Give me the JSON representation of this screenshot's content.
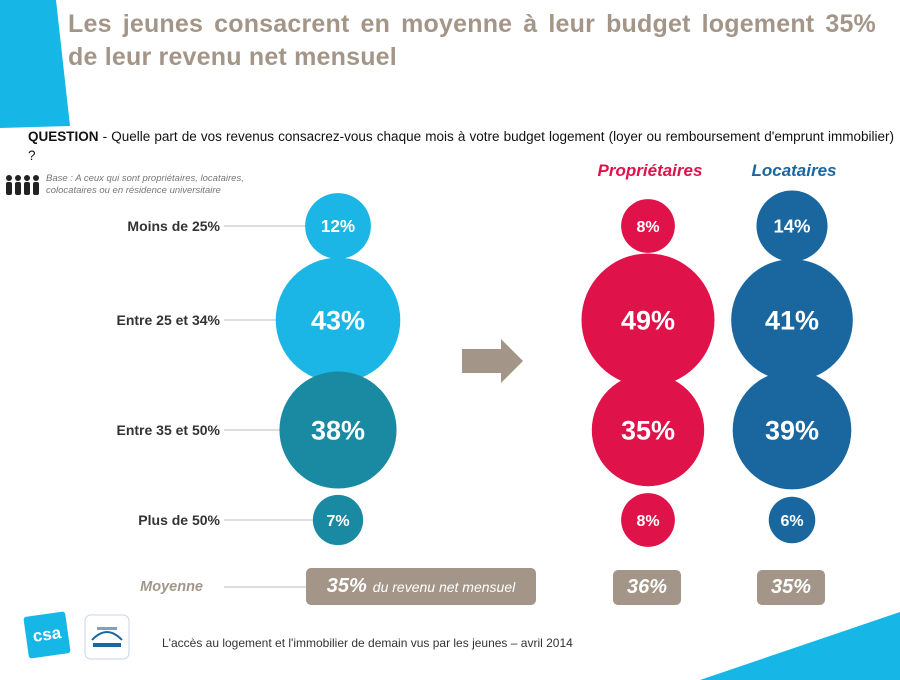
{
  "title": "Les jeunes consacrent en moyenne à leur budget logement 35% de leur revenu net mensuel",
  "question": {
    "prefix": "QUESTION",
    "text": " - Quelle part de vos revenus consacrez-vous chaque mois à votre budget logement (loyer ou remboursement d'emprunt immobilier) ?"
  },
  "base_note": "Base : A ceux qui sont propriétaires, locataires, colocataires ou en résidence universitaire",
  "colors": {
    "ensemble": [
      "#1cb6e6",
      "#1cb6e6",
      "#1a8aa3",
      "#1a8aa3"
    ],
    "proprietaires": "#e0124a",
    "locataires": "#1a67a0",
    "moyenne": "#a39688",
    "arrow": "#a39688"
  },
  "chart_data": {
    "type": "bubble",
    "categories": [
      "Moins de 25%",
      "Entre 25 et 34%",
      "Entre 35 et 50%",
      "Plus de 50%"
    ],
    "series": [
      {
        "key": "ensemble",
        "values": [
          12,
          43,
          38,
          7
        ],
        "labels": [
          "12%",
          "43%",
          "38%",
          "7%"
        ]
      },
      {
        "key": "proprietaires",
        "name": "Propriétaires",
        "values": [
          8,
          49,
          35,
          8
        ],
        "labels": [
          "8%",
          "49%",
          "35%",
          "8%"
        ]
      },
      {
        "key": "locataires",
        "name": "Locataires",
        "values": [
          14,
          41,
          39,
          6
        ],
        "labels": [
          "14%",
          "41%",
          "39%",
          "6%"
        ]
      }
    ],
    "average": {
      "label": "Moyenne",
      "ensemble": "35%",
      "ensemble_suffix": "du revenu net mensuel",
      "proprietaires": "36%",
      "locataires": "35%"
    }
  },
  "footer": "L'accès au logement et l'immobilier de demain vus par les jeunes – avril 2014",
  "logos": {
    "csa": "csa"
  }
}
